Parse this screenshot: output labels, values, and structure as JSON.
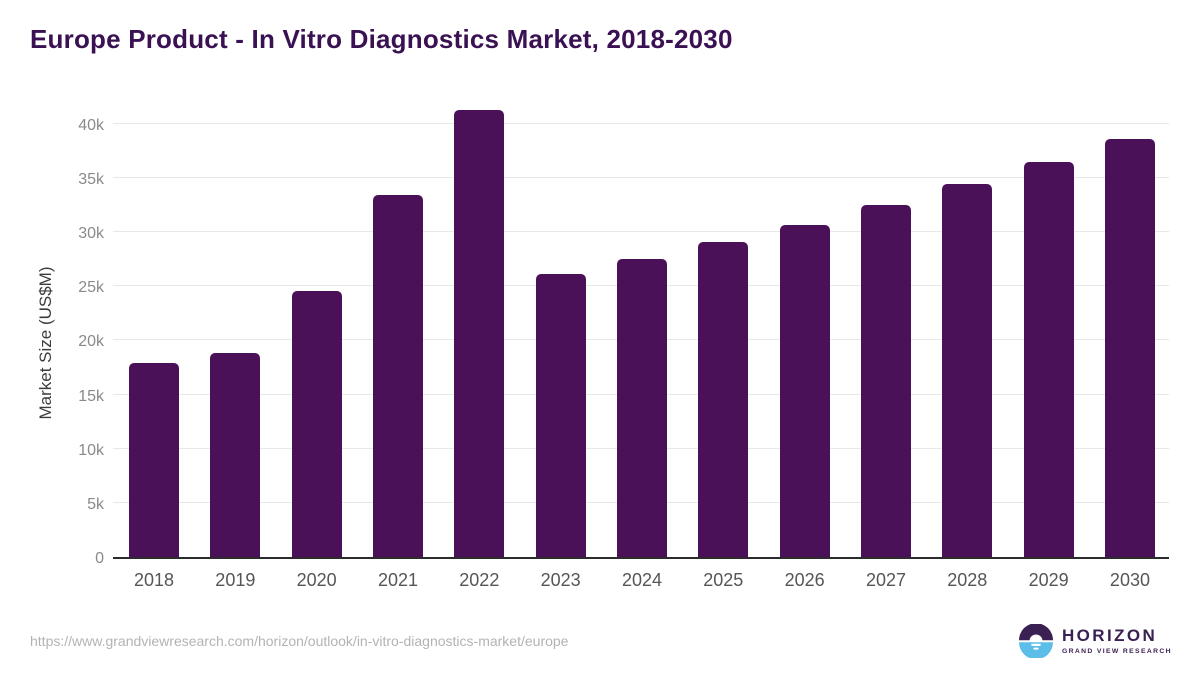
{
  "title": "Europe Product - In Vitro Diagnostics Market, 2018-2030",
  "source_url": "https://www.grandviewresearch.com/horizon/outlook/in-vitro-diagnostics-market/europe",
  "logo": {
    "name": "HORIZON",
    "subtitle": "GRAND VIEW RESEARCH",
    "icon": "horizon-sun-circle-icon"
  },
  "colors": {
    "bar": "#4a1159",
    "title": "#3a1153",
    "gridline": "#e8e8e8",
    "axis_line": "#2b2b2b",
    "tick_label": "#8a8a8a",
    "x_label": "#565656",
    "axis_title": "#3c3c3c",
    "url": "#b3b3b3",
    "logo_purple": "#3b2053",
    "logo_blue": "#5cbde9"
  },
  "chart_data": {
    "type": "bar",
    "title": "Europe Product - In Vitro Diagnostics Market, 2018-2030",
    "categories": [
      "2018",
      "2019",
      "2020",
      "2021",
      "2022",
      "2023",
      "2024",
      "2025",
      "2026",
      "2027",
      "2028",
      "2029",
      "2030"
    ],
    "values": [
      17900,
      18800,
      24600,
      33400,
      41300,
      26100,
      27500,
      29100,
      30700,
      32500,
      34400,
      36500,
      38600
    ],
    "xlabel": "",
    "ylabel": "Market Size (US$M)",
    "units": "US$M",
    "ylim": [
      0,
      45000
    ],
    "yticks": [
      {
        "value": 0,
        "label": "0"
      },
      {
        "value": 5000,
        "label": "5k"
      },
      {
        "value": 10000,
        "label": "10k"
      },
      {
        "value": 15000,
        "label": "15k"
      },
      {
        "value": 20000,
        "label": "20k"
      },
      {
        "value": 25000,
        "label": "25k"
      },
      {
        "value": 30000,
        "label": "30k"
      },
      {
        "value": 35000,
        "label": "35k"
      },
      {
        "value": 40000,
        "label": "40k"
      }
    ],
    "grid": "horizontal",
    "legend": "none",
    "bar_color": "#4a1159"
  }
}
